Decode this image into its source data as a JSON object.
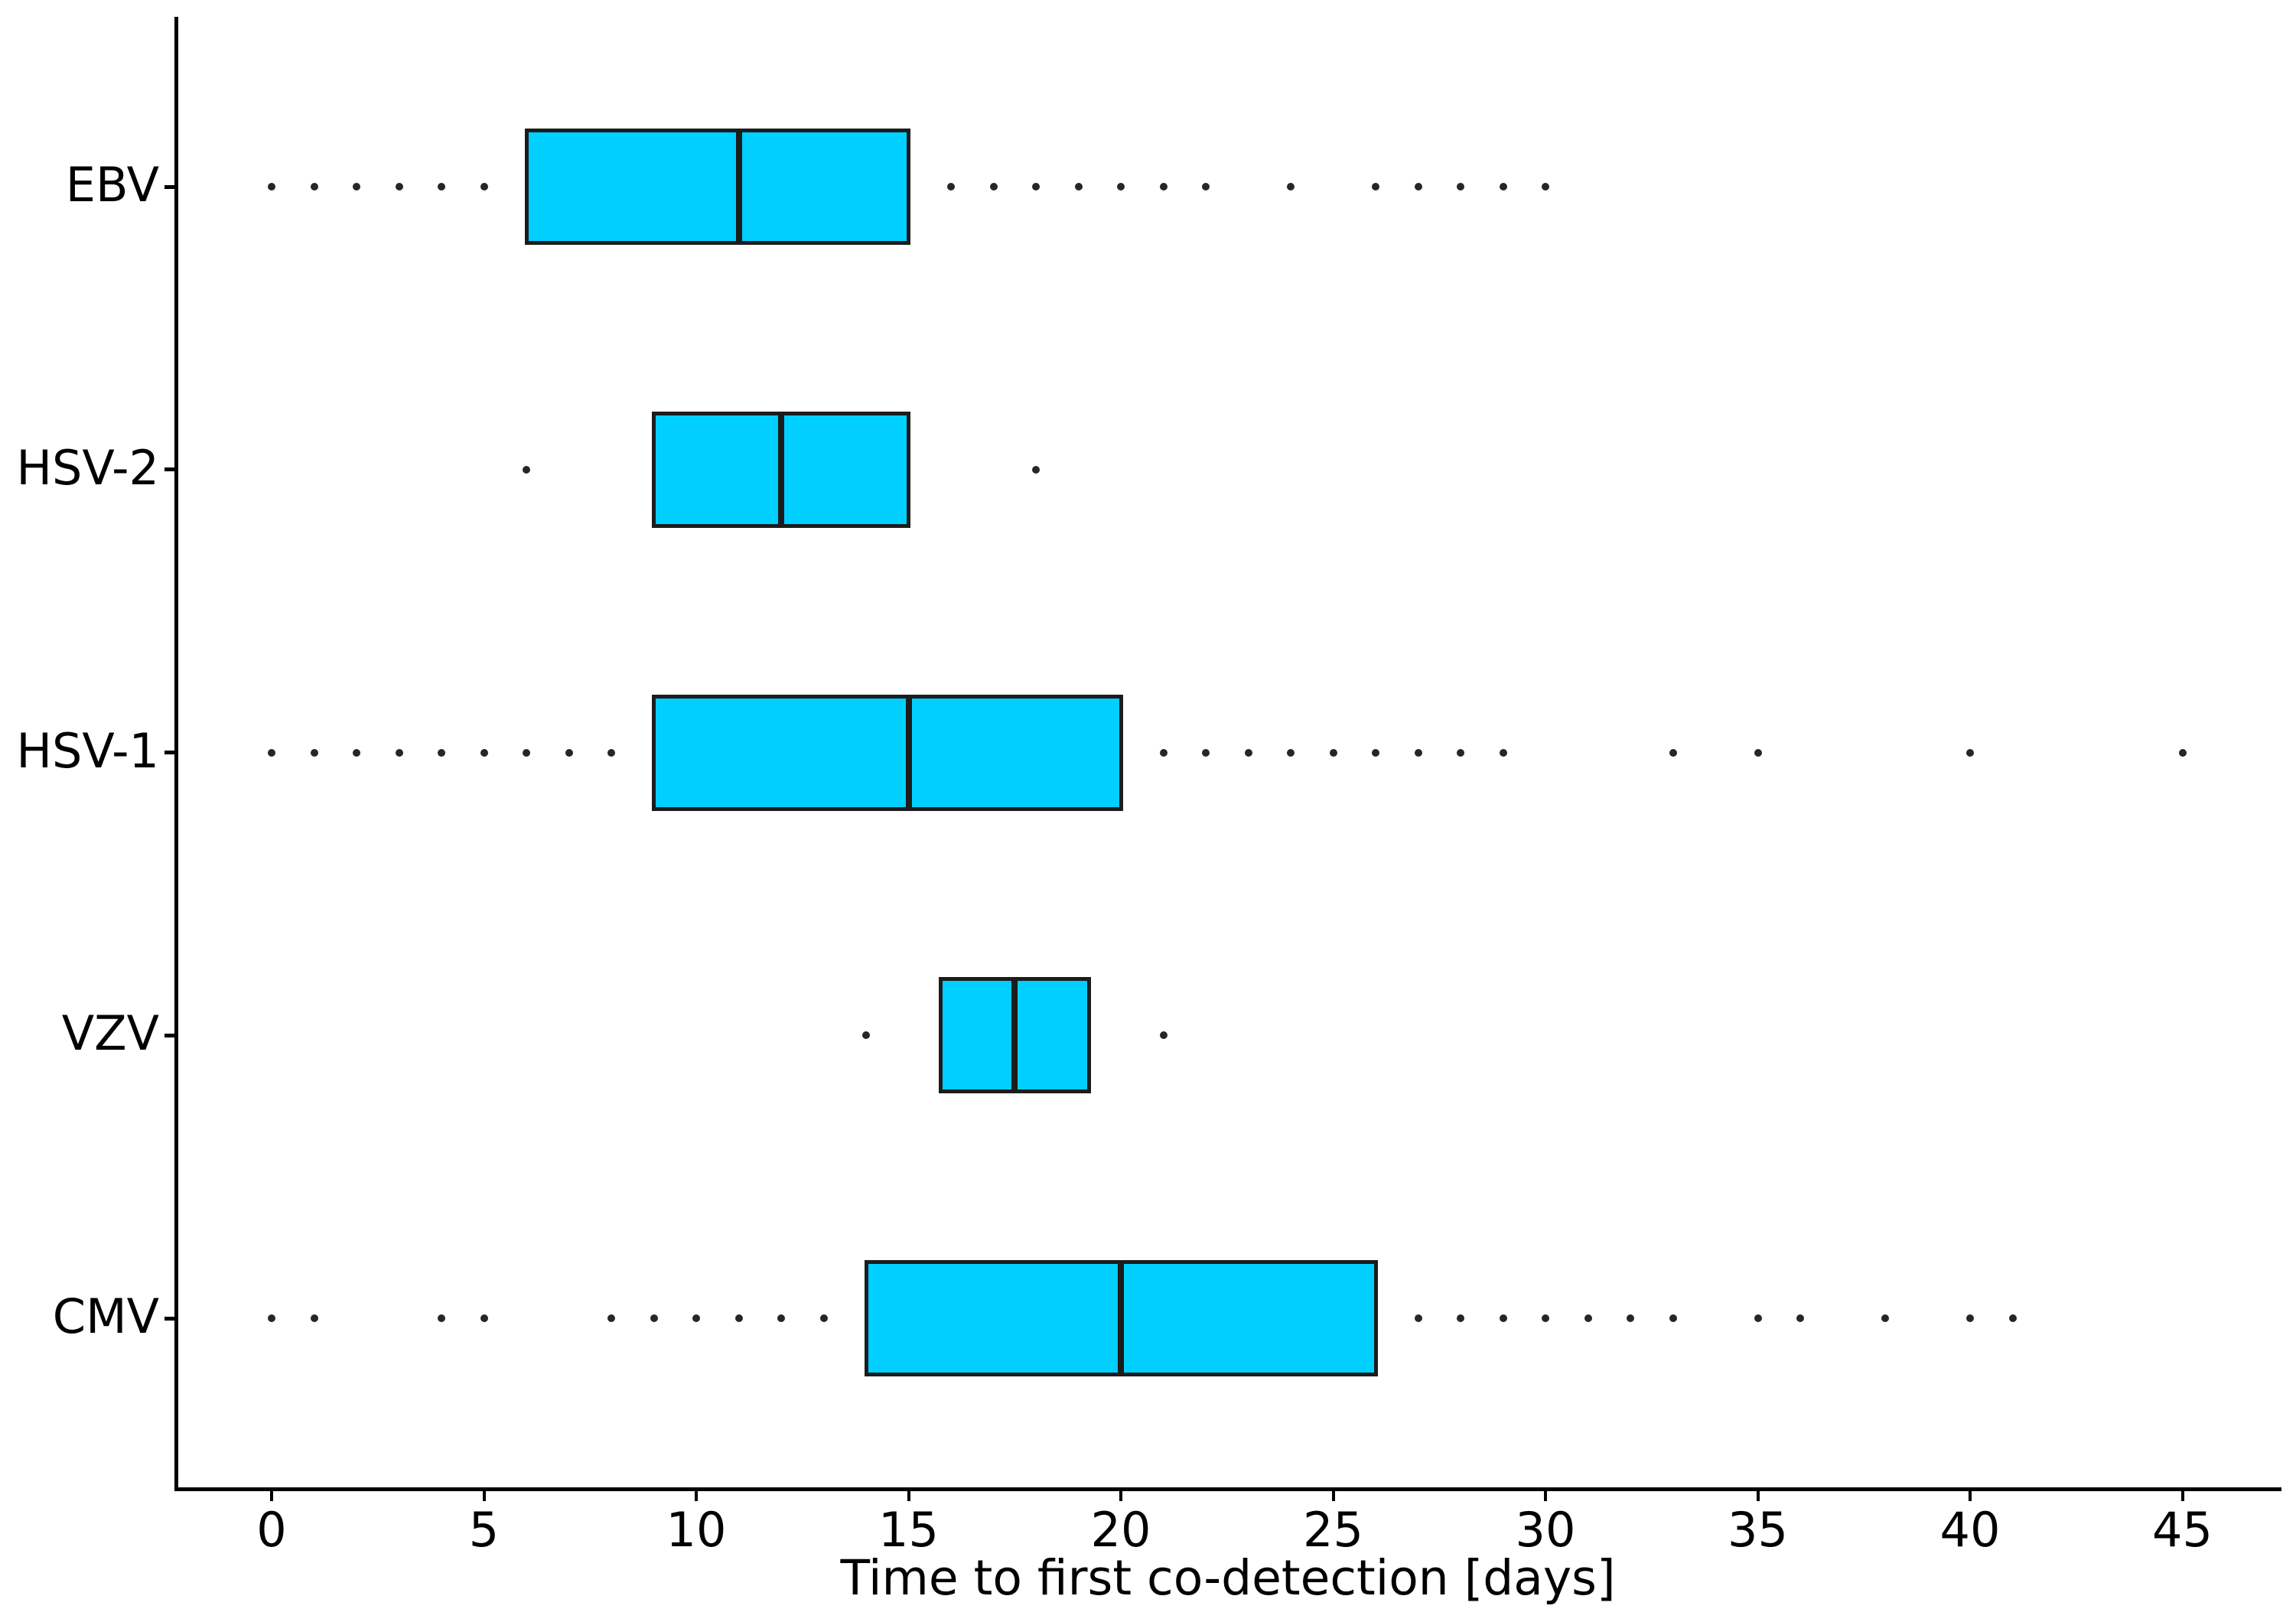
{
  "chart_data": {
    "type": "boxplot",
    "orientation": "horizontal",
    "title": "",
    "xlabel": "Time to first co-detection [days]",
    "ylabel": "",
    "x_ticks": [
      0,
      5,
      10,
      15,
      20,
      25,
      30,
      35,
      40,
      45
    ],
    "xlim": [
      -2.3,
      47.3
    ],
    "grid": false,
    "legend": "none",
    "categories": [
      "EBV",
      "HSV-2",
      "HSV-1",
      "VZV",
      "CMV"
    ],
    "series": [
      {
        "name": "EBV",
        "q1": 6,
        "median": 11,
        "q3": 15,
        "points": [
          0,
          1,
          2,
          3,
          4,
          5,
          16,
          17,
          18,
          19,
          20,
          21,
          22,
          24,
          26,
          27,
          28,
          29,
          30
        ]
      },
      {
        "name": "HSV-2",
        "q1": 9,
        "median": 12,
        "q3": 15,
        "points": [
          6,
          18
        ]
      },
      {
        "name": "HSV-1",
        "q1": 9,
        "median": 15,
        "q3": 20,
        "points": [
          0,
          1,
          2,
          3,
          4,
          5,
          6,
          7,
          8,
          21,
          22,
          23,
          24,
          25,
          26,
          27,
          28,
          29,
          33,
          35,
          40,
          45
        ]
      },
      {
        "name": "VZV",
        "q1": 15.75,
        "median": 17.5,
        "q3": 19.25,
        "points": [
          14,
          21
        ]
      },
      {
        "name": "CMV",
        "q1": 14,
        "median": 20,
        "q3": 26,
        "points": [
          0,
          1,
          4,
          5,
          8,
          9,
          10,
          11,
          12,
          13,
          27,
          28,
          29,
          30,
          31,
          32,
          33,
          35,
          36,
          38,
          40,
          41
        ]
      }
    ],
    "colors": {
      "box_fill": "#00CFFF",
      "box_border": "#1c1c1c",
      "median": "#1c1c1c",
      "point": "#262626",
      "axis": "#000000",
      "background": "#ffffff"
    }
  }
}
